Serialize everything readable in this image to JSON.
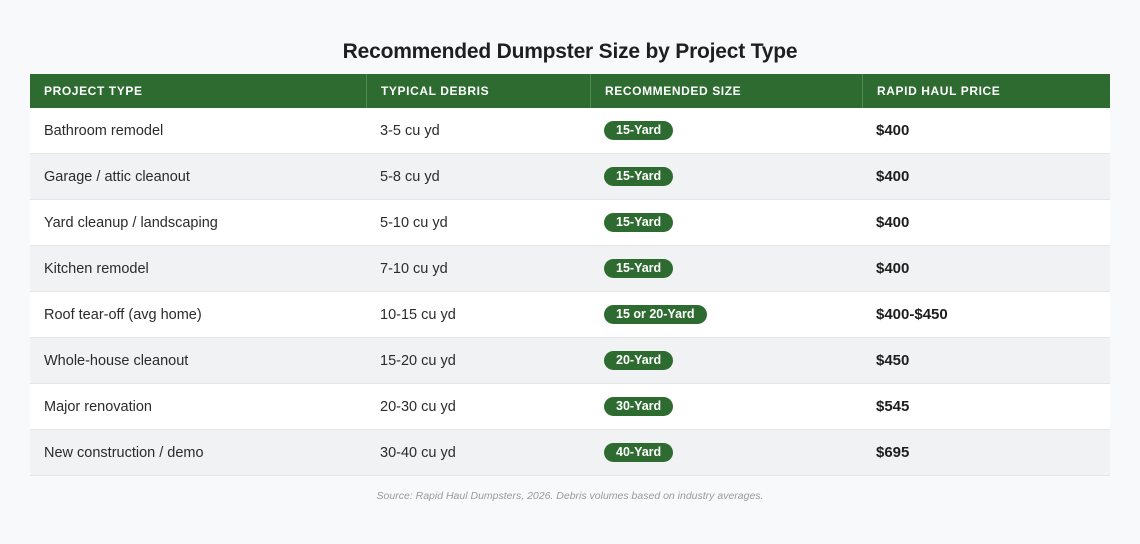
{
  "title": "Recommended Dumpster Size by Project Type",
  "columns": [
    "PROJECT TYPE",
    "TYPICAL DEBRIS",
    "RECOMMENDED SIZE",
    "RAPID HAUL PRICE"
  ],
  "rows": [
    {
      "project": "Bathroom remodel",
      "debris": "3-5 cu yd",
      "size": "15-Yard",
      "price": "$400"
    },
    {
      "project": "Garage / attic cleanout",
      "debris": "5-8 cu yd",
      "size": "15-Yard",
      "price": "$400"
    },
    {
      "project": "Yard cleanup / landscaping",
      "debris": "5-10 cu yd",
      "size": "15-Yard",
      "price": "$400"
    },
    {
      "project": "Kitchen remodel",
      "debris": "7-10 cu yd",
      "size": "15-Yard",
      "price": "$400"
    },
    {
      "project": "Roof tear-off (avg home)",
      "debris": "10-15 cu yd",
      "size": "15 or 20-Yard",
      "price": "$400-$450"
    },
    {
      "project": "Whole-house cleanout",
      "debris": "15-20 cu yd",
      "size": "20-Yard",
      "price": "$450"
    },
    {
      "project": "Major renovation",
      "debris": "20-30 cu yd",
      "size": "30-Yard",
      "price": "$545"
    },
    {
      "project": "New construction / demo",
      "debris": "30-40 cu yd",
      "size": "40-Yard",
      "price": "$695"
    }
  ],
  "source": "Source: Rapid Haul Dumpsters, 2026. Debris volumes based on industry averages.",
  "colors": {
    "header_bg": "#2e6b30",
    "badge_bg": "#2e6b30"
  }
}
